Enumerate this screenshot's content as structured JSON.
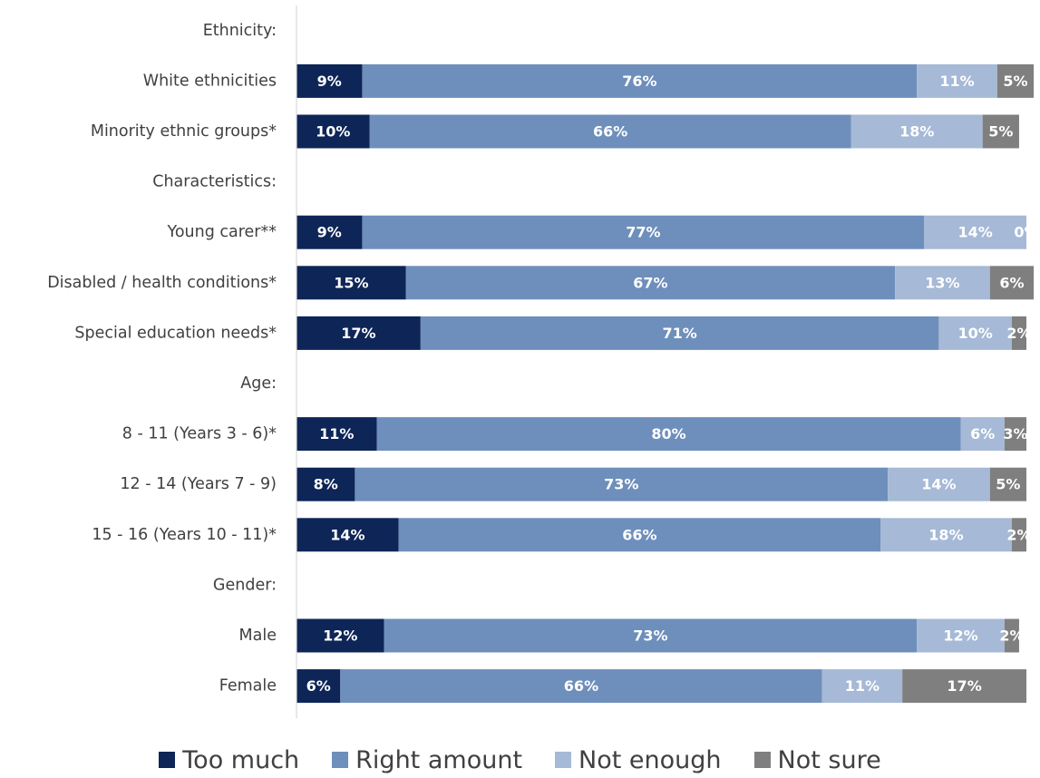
{
  "chart_data": {
    "type": "bar",
    "orientation": "horizontal",
    "stacked": true,
    "normalized": true,
    "value_format": "percent",
    "categories": [
      "Ethnicity:",
      "White ethnicities",
      "Minority ethnic groups*",
      "Characteristics:",
      "Young carer**",
      "Disabled / health conditions*",
      "Special education needs*",
      "Age:",
      "8 - 11 (Years 3 - 6)*",
      "12 - 14 (Years 7 - 9)",
      "15 - 16 (Years 10 - 11)*",
      "Gender:",
      "Male",
      "Female"
    ],
    "series": [
      {
        "name": "Too much",
        "color": "#0e2557",
        "values": [
          null,
          9,
          10,
          null,
          9,
          15,
          17,
          null,
          11,
          8,
          14,
          null,
          12,
          6
        ]
      },
      {
        "name": "Right amount",
        "color": "#6e8fbb",
        "values": [
          null,
          76,
          66,
          null,
          77,
          67,
          71,
          null,
          80,
          73,
          66,
          null,
          73,
          66
        ]
      },
      {
        "name": "Not enough",
        "color": "#a6b9d6",
        "values": [
          null,
          11,
          18,
          null,
          14,
          13,
          10,
          null,
          6,
          14,
          18,
          null,
          12,
          11
        ]
      },
      {
        "name": "Not sure",
        "color": "#7f7f7f",
        "values": [
          null,
          5,
          5,
          null,
          0,
          6,
          2,
          null,
          3,
          5,
          2,
          null,
          2,
          17
        ]
      }
    ],
    "xlim": [
      0,
      100
    ],
    "legend_position": "bottom",
    "grid": false
  }
}
